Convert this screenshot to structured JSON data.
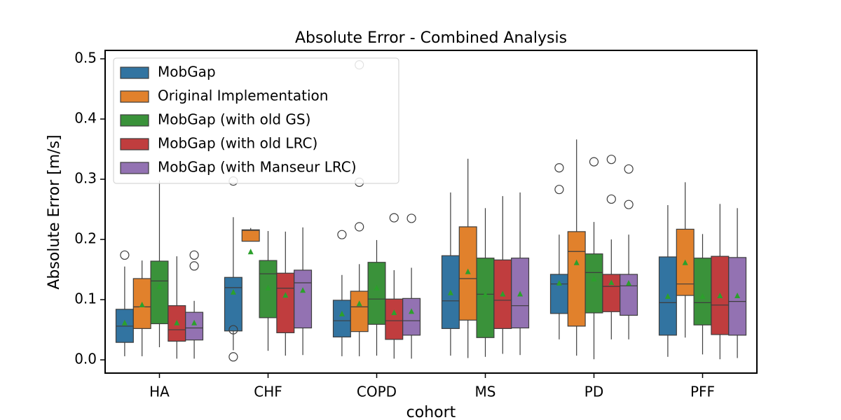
{
  "chart_data": {
    "type": "box",
    "title": "Absolute Error - Combined Analysis",
    "xlabel": "cohort",
    "ylabel": "Absolute Error [m/s]",
    "categories": [
      "HA",
      "CHF",
      "COPD",
      "MS",
      "PD",
      "PFF"
    ],
    "ylim": [
      -0.022,
      0.514
    ],
    "yticks": [
      {
        "value": 0,
        "label": "0.0"
      },
      0.1,
      0.2,
      0.3,
      0.4,
      0.5
    ],
    "legend": "upper left",
    "mean_color": "#2ca02c",
    "series": [
      {
        "name": "MobGap",
        "color": "#3274a1",
        "boxes": [
          {
            "whislo": 0.006,
            "q1": 0.029,
            "med": 0.056,
            "q3": 0.084,
            "whishi": 0.155,
            "mean": 0.062,
            "fliers": [
              0.174
            ]
          },
          {
            "whislo": 0.016,
            "q1": 0.048,
            "med": 0.12,
            "q3": 0.137,
            "whishi": 0.237,
            "mean": 0.113,
            "fliers": [
              0.297,
              0.05,
              0.005
            ]
          },
          {
            "whislo": 0.006,
            "q1": 0.038,
            "med": 0.065,
            "q3": 0.099,
            "whishi": 0.141,
            "mean": 0.077,
            "fliers": [
              0.208
            ]
          },
          {
            "whislo": 0.007,
            "q1": 0.052,
            "med": 0.098,
            "q3": 0.173,
            "whishi": 0.278,
            "mean": 0.112
          },
          {
            "whislo": 0.034,
            "q1": 0.077,
            "med": 0.126,
            "q3": 0.142,
            "whishi": 0.208,
            "mean": 0.128,
            "fliers": [
              0.319,
              0.283
            ]
          },
          {
            "whislo": 0.005,
            "q1": 0.041,
            "med": 0.095,
            "q3": 0.171,
            "whishi": 0.257,
            "mean": 0.106
          }
        ]
      },
      {
        "name": "Original Implementation",
        "color": "#e1812c",
        "boxes": [
          {
            "whislo": 0.006,
            "q1": 0.052,
            "med": 0.088,
            "q3": 0.135,
            "whishi": 0.165,
            "mean": 0.092
          },
          {
            "whislo": 0.197,
            "q1": 0.197,
            "med": 0.215,
            "q3": 0.216,
            "whishi": 0.219,
            "mean": 0.18
          },
          {
            "whislo": 0.006,
            "q1": 0.047,
            "med": 0.088,
            "q3": 0.114,
            "whishi": 0.159,
            "mean": 0.094,
            "fliers": [
              0.221,
              0.295,
              0.49
            ]
          },
          {
            "whislo": 0.003,
            "q1": 0.066,
            "med": 0.135,
            "q3": 0.221,
            "whishi": 0.334,
            "mean": 0.147
          },
          {
            "whislo": 0.007,
            "q1": 0.056,
            "med": 0.18,
            "q3": 0.213,
            "whishi": 0.366,
            "mean": 0.162
          },
          {
            "whislo": 0.037,
            "q1": 0.107,
            "med": 0.126,
            "q3": 0.217,
            "whishi": 0.295,
            "mean": 0.162
          }
        ]
      },
      {
        "name": "MobGap (with old GS)",
        "color": "#3a923a",
        "boxes": [
          {
            "whislo": 0.021,
            "q1": 0.06,
            "med": 0.131,
            "q3": 0.164,
            "whishi": 0.298,
            "mean": 0.122
          },
          {
            "whislo": 0.015,
            "q1": 0.07,
            "med": 0.143,
            "q3": 0.165,
            "whishi": 0.214,
            "mean": 0.12
          },
          {
            "whislo": 0.007,
            "q1": 0.059,
            "med": 0.101,
            "q3": 0.162,
            "whishi": 0.199,
            "mean": 0.12
          },
          {
            "whislo": 0.005,
            "q1": 0.037,
            "med": 0.109,
            "q3": 0.169,
            "whishi": 0.252,
            "mean": 0.109
          },
          {
            "whislo": 0.001,
            "q1": 0.078,
            "med": 0.145,
            "q3": 0.176,
            "whishi": 0.229,
            "mean": 0.135,
            "fliers": [
              0.329
            ]
          },
          {
            "whislo": 0.009,
            "q1": 0.058,
            "med": 0.095,
            "q3": 0.169,
            "whishi": 0.209,
            "mean": 0.106
          }
        ]
      },
      {
        "name": "MobGap (with old LRC)",
        "color": "#c03d3e",
        "boxes": [
          {
            "whislo": 0.002,
            "q1": 0.031,
            "med": 0.05,
            "q3": 0.09,
            "whishi": 0.172,
            "mean": 0.062
          },
          {
            "whislo": 0.007,
            "q1": 0.045,
            "med": 0.119,
            "q3": 0.144,
            "whishi": 0.213,
            "mean": 0.108
          },
          {
            "whislo": 0.002,
            "q1": 0.034,
            "med": 0.065,
            "q3": 0.101,
            "whishi": 0.149,
            "mean": 0.079,
            "fliers": [
              0.236
            ]
          },
          {
            "whislo": 0.01,
            "q1": 0.052,
            "med": 0.099,
            "q3": 0.166,
            "whishi": 0.272,
            "mean": 0.11
          },
          {
            "whislo": 0.034,
            "q1": 0.08,
            "med": 0.122,
            "q3": 0.142,
            "whishi": 0.2,
            "mean": 0.129,
            "fliers": [
              0.333,
              0.267
            ]
          },
          {
            "whislo": 0.001,
            "q1": 0.042,
            "med": 0.091,
            "q3": 0.172,
            "whishi": 0.259,
            "mean": 0.107
          }
        ]
      },
      {
        "name": "MobGap (with Manseur LRC)",
        "color": "#9372b2",
        "boxes": [
          {
            "whislo": 0.002,
            "q1": 0.033,
            "med": 0.053,
            "q3": 0.079,
            "whishi": 0.098,
            "mean": 0.062,
            "fliers": [
              0.174,
              0.156
            ]
          },
          {
            "whislo": 0.008,
            "q1": 0.053,
            "med": 0.128,
            "q3": 0.149,
            "whishi": 0.22,
            "mean": 0.116
          },
          {
            "whislo": 0.002,
            "q1": 0.041,
            "med": 0.065,
            "q3": 0.102,
            "whishi": 0.153,
            "mean": 0.081,
            "fliers": [
              0.235
            ]
          },
          {
            "whislo": 0.008,
            "q1": 0.053,
            "med": 0.09,
            "q3": 0.169,
            "whishi": 0.278,
            "mean": 0.11
          },
          {
            "whislo": 0.034,
            "q1": 0.074,
            "med": 0.123,
            "q3": 0.142,
            "whishi": 0.208,
            "mean": 0.128,
            "fliers": [
              0.317,
              0.258
            ]
          },
          {
            "whislo": 0.003,
            "q1": 0.041,
            "med": 0.097,
            "q3": 0.17,
            "whishi": 0.252,
            "mean": 0.107
          }
        ]
      }
    ]
  }
}
